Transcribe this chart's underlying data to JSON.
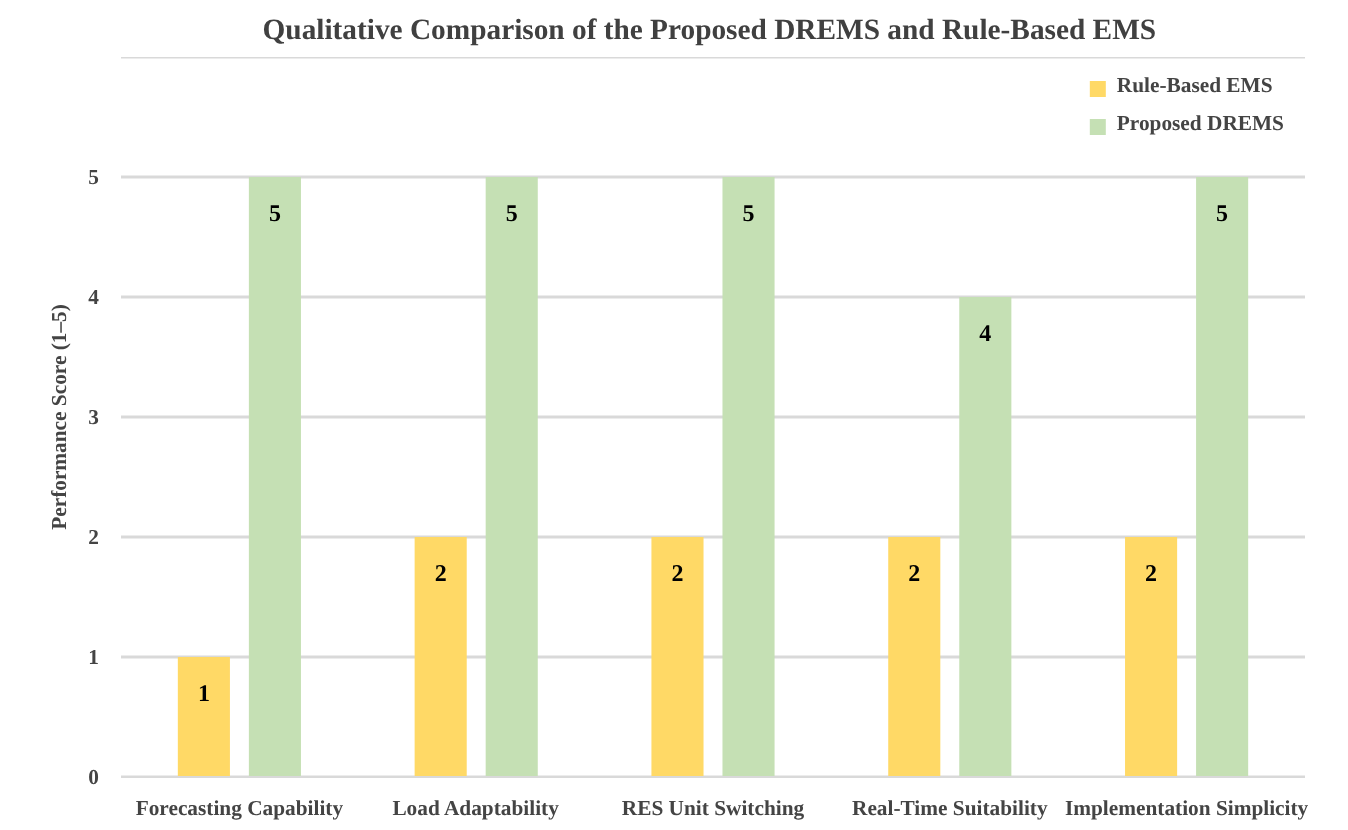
{
  "chart_data": {
    "type": "bar",
    "title": "Qualitative Comparison of  the Proposed DREMS and Rule-Based EMS",
    "ylabel": "Performance Score (1–5)",
    "categories": [
      "Forecasting Capability",
      "Load Adaptability",
      "RES Unit Switching",
      "Real-Time Suitability",
      "Implementation Simplicity"
    ],
    "series": [
      {
        "name": "Rule-Based EMS",
        "color": "#ffd966",
        "values": [
          1,
          2,
          2,
          2,
          2
        ]
      },
      {
        "name": "Proposed DREMS",
        "color": "#c5e0b4",
        "values": [
          5,
          5,
          5,
          4,
          5
        ]
      }
    ],
    "ylim": [
      0,
      6
    ],
    "yticks": [
      0,
      1,
      2,
      3,
      4,
      5,
      {
        "value": 6,
        "label": null
      }
    ],
    "grid": "y",
    "legend": "top right",
    "data_labels": true
  }
}
